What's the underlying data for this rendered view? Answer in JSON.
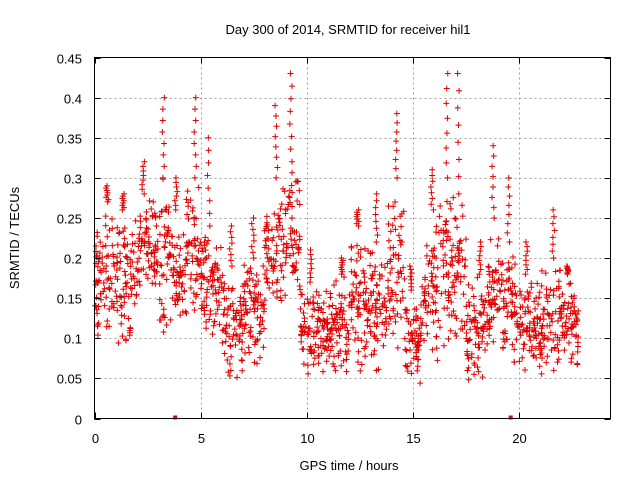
{
  "chart_data": {
    "type": "scatter",
    "title": "Day 300 of 2014, SRMTID for receiver hil1",
    "xlabel": "GPS time / hours",
    "ylabel": "SRMTID / TECUs",
    "xlim": [
      0,
      24.3
    ],
    "ylim": [
      0,
      0.45
    ],
    "x_ticks": [
      0,
      5,
      10,
      15,
      20
    ],
    "x_tick_labels": [
      "0",
      "5",
      "10",
      "15",
      "20"
    ],
    "y_ticks": [
      0,
      0.05,
      0.1,
      0.15,
      0.2,
      0.25,
      0.3,
      0.35,
      0.4,
      0.45
    ],
    "y_tick_labels": [
      "0",
      "0.05",
      "0.1",
      "0.15",
      "0.2",
      "0.25",
      "0.3",
      "0.35",
      "0.4",
      "0.45"
    ],
    "grid": true,
    "marker": "+",
    "series": [
      {
        "name": "SRMTID",
        "color": "#e00000",
        "segments": [
          {
            "t0": 0.0,
            "t1": 1.0,
            "low": 0.08,
            "high": 0.27,
            "peak": 0.29
          },
          {
            "t0": 1.0,
            "t1": 2.0,
            "low": 0.08,
            "high": 0.26,
            "peak": 0.28
          },
          {
            "t0": 2.0,
            "t1": 3.0,
            "low": 0.15,
            "high": 0.28,
            "peak": 0.32
          },
          {
            "t0": 3.0,
            "t1": 3.6,
            "low": 0.1,
            "high": 0.3,
            "peak": 0.4
          },
          {
            "t0": 3.6,
            "t1": 4.3,
            "low": 0.1,
            "high": 0.26,
            "peak": 0.3
          },
          {
            "t0": 4.3,
            "t1": 5.0,
            "low": 0.12,
            "high": 0.3,
            "peak": 0.4
          },
          {
            "t0": 5.0,
            "t1": 6.0,
            "low": 0.1,
            "high": 0.24,
            "peak": 0.35
          },
          {
            "t0": 6.0,
            "t1": 7.0,
            "low": 0.04,
            "high": 0.19,
            "peak": 0.24
          },
          {
            "t0": 7.0,
            "t1": 8.0,
            "low": 0.06,
            "high": 0.2,
            "peak": 0.25
          },
          {
            "t0": 8.0,
            "t1": 9.0,
            "low": 0.12,
            "high": 0.3,
            "peak": 0.39
          },
          {
            "t0": 9.0,
            "t1": 9.7,
            "low": 0.14,
            "high": 0.32,
            "peak": 0.43
          },
          {
            "t0": 9.7,
            "t1": 11.0,
            "low": 0.05,
            "high": 0.17,
            "peak": 0.21
          },
          {
            "t0": 11.0,
            "t1": 12.0,
            "low": 0.05,
            "high": 0.18,
            "peak": 0.2
          },
          {
            "t0": 12.0,
            "t1": 13.0,
            "low": 0.05,
            "high": 0.24,
            "peak": 0.26
          },
          {
            "t0": 13.0,
            "t1": 13.8,
            "low": 0.05,
            "high": 0.22,
            "peak": 0.28
          },
          {
            "t0": 13.8,
            "t1": 14.6,
            "low": 0.08,
            "high": 0.3,
            "peak": 0.38
          },
          {
            "t0": 14.6,
            "t1": 15.4,
            "low": 0.04,
            "high": 0.16,
            "peak": 0.19
          },
          {
            "t0": 15.4,
            "t1": 16.2,
            "low": 0.06,
            "high": 0.26,
            "peak": 0.31
          },
          {
            "t0": 16.2,
            "t1": 16.8,
            "low": 0.08,
            "high": 0.3,
            "peak": 0.43
          },
          {
            "t0": 16.8,
            "t1": 17.5,
            "low": 0.08,
            "high": 0.28,
            "peak": 0.43
          },
          {
            "t0": 17.5,
            "t1": 18.5,
            "low": 0.04,
            "high": 0.18,
            "peak": 0.22
          },
          {
            "t0": 18.5,
            "t1": 19.2,
            "low": 0.06,
            "high": 0.25,
            "peak": 0.34
          },
          {
            "t0": 19.2,
            "t1": 20.0,
            "low": 0.05,
            "high": 0.22,
            "peak": 0.3
          },
          {
            "t0": 20.0,
            "t1": 21.0,
            "low": 0.05,
            "high": 0.18,
            "peak": 0.22
          },
          {
            "t0": 21.0,
            "t1": 22.0,
            "low": 0.04,
            "high": 0.2,
            "peak": 0.26
          },
          {
            "t0": 22.0,
            "t1": 22.8,
            "low": 0.06,
            "high": 0.18,
            "peak": 0.19
          }
        ],
        "zero_points": [
          {
            "x": 3.8,
            "y": 0.0
          },
          {
            "x": 19.6,
            "y": 0.0
          }
        ]
      }
    ]
  }
}
